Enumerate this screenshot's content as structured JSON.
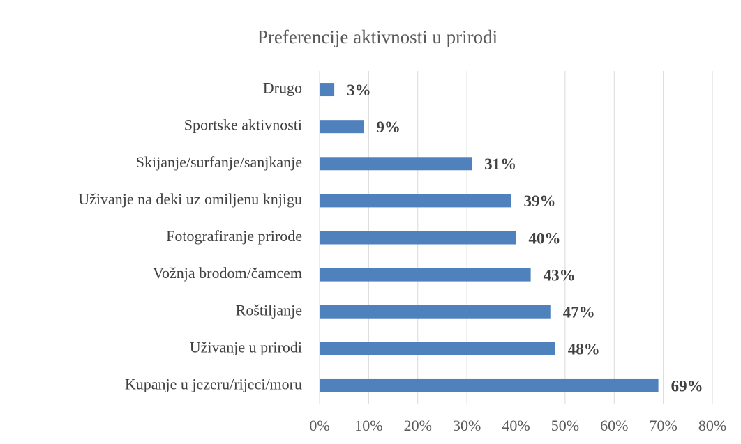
{
  "chart_data": {
    "type": "bar",
    "orientation": "horizontal",
    "title": "Preferencije aktivnosti u prirodi",
    "categories": [
      "Drugo",
      "Sportske aktivnosti",
      "Skijanje/surfanje/sanjkanje",
      "Uživanje na deki uz omiljenu knjigu",
      "Fotografiranje prirode",
      "Vožnja brodom/čamcem",
      "Roštiljanje",
      "Uživanje u prirodi",
      "Kupanje u jezeru/rijeci/moru"
    ],
    "values": [
      3,
      9,
      31,
      39,
      40,
      43,
      47,
      48,
      69
    ],
    "value_labels": [
      "3%",
      "9%",
      "31%",
      "39%",
      "40%",
      "43%",
      "47%",
      "48%",
      "69%"
    ],
    "color": "#4f81bd",
    "xlim": [
      0,
      80
    ],
    "xticks": [
      {
        "value": 0,
        "label": "0%"
      },
      {
        "value": 10,
        "label": "10%"
      },
      {
        "value": 20,
        "label": "20%"
      },
      {
        "value": 30,
        "label": "30%"
      },
      {
        "value": 40,
        "label": "40%"
      },
      {
        "value": 50,
        "label": "50%"
      },
      {
        "value": 60,
        "label": "60%"
      },
      {
        "value": 70,
        "label": "70%"
      },
      {
        "value": 80,
        "label": "80%"
      }
    ],
    "grid": true
  }
}
